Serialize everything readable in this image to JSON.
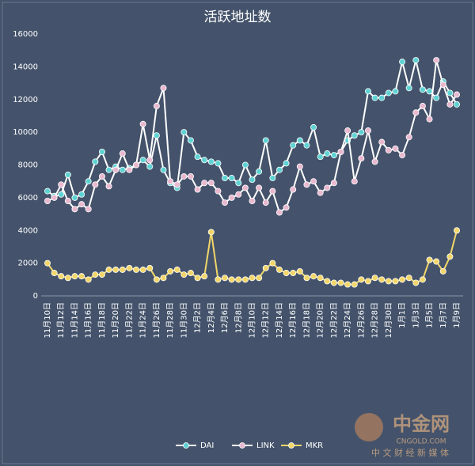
{
  "chart_data": {
    "type": "line",
    "title": "活跃地址数",
    "categories": [
      "11月10日",
      null,
      "11月12日",
      null,
      "11月14日",
      null,
      "11月16日",
      null,
      "11月18日",
      null,
      "11月20日",
      null,
      "11月22日",
      null,
      "11月24日",
      null,
      "11月26日",
      null,
      "11月28日",
      null,
      "11月30日",
      null,
      "12月2日",
      null,
      "12月4日",
      null,
      "12月6日",
      null,
      "12月8日",
      null,
      "12月10日",
      null,
      "12月12日",
      null,
      "12月14日",
      null,
      "12月16日",
      null,
      "12月18日",
      null,
      "12月20日",
      null,
      "12月22日",
      null,
      "12月24日",
      null,
      "12月26日",
      null,
      "12月28日",
      null,
      "12月30日",
      null,
      "1月1日",
      null,
      "1月3日",
      null,
      "1月5日",
      null,
      "1月7日",
      null,
      "1月9日"
    ],
    "series": [
      {
        "name": "DAI",
        "color": "#5fd3d3",
        "line_color": "#ffffff",
        "values": [
          6400,
          6100,
          6200,
          7400,
          6000,
          6200,
          7000,
          8200,
          8800,
          7700,
          7900,
          7700,
          7800,
          8000,
          8300,
          7900,
          9800,
          7700,
          6900,
          6600,
          10000,
          9500,
          8500,
          8300,
          8200,
          8100,
          7200,
          7200,
          6900,
          8000,
          7100,
          7600,
          9500,
          7200,
          7700,
          8100,
          9200,
          9500,
          9200,
          10300,
          8500,
          8700,
          8600,
          8800,
          9500,
          9800,
          10000,
          12500,
          12100,
          12100,
          12400,
          12500,
          14300,
          12700,
          14400,
          12600,
          12500,
          12100,
          13100,
          12400,
          11700
        ]
      },
      {
        "name": "LINK",
        "color": "#e9b9d0",
        "line_color": "#ffffff",
        "values": [
          5800,
          6000,
          6800,
          5800,
          5300,
          5600,
          5300,
          6800,
          7300,
          6700,
          7700,
          8700,
          7700,
          8000,
          10500,
          8300,
          11600,
          12700,
          7000,
          6800,
          7300,
          7300,
          6500,
          6900,
          6900,
          6400,
          5700,
          6000,
          6200,
          6600,
          5800,
          6600,
          5700,
          6400,
          5100,
          5400,
          6500,
          7900,
          6800,
          7000,
          6300,
          6600,
          6900,
          8800,
          10100,
          7000,
          8400,
          10100,
          8200,
          9400,
          8900,
          9000,
          8600,
          9700,
          11200,
          11600,
          10800,
          14400,
          12900,
          11700,
          12300
        ]
      },
      {
        "name": "MKR",
        "color": "#f2d66a",
        "line_color": "#f2d66a",
        "values": [
          2000,
          1400,
          1200,
          1100,
          1200,
          1200,
          1000,
          1300,
          1300,
          1600,
          1600,
          1600,
          1700,
          1600,
          1600,
          1700,
          1000,
          1100,
          1500,
          1600,
          1300,
          1400,
          1100,
          1200,
          3900,
          1000,
          1100,
          1000,
          1000,
          1000,
          1100,
          1100,
          1700,
          2000,
          1600,
          1400,
          1400,
          1500,
          1100,
          1200,
          1100,
          900,
          800,
          800,
          700,
          700,
          1000,
          900,
          1100,
          1000,
          900,
          900,
          1000,
          1100,
          800,
          1000,
          2200,
          2100,
          1500,
          2400,
          4000
        ]
      }
    ],
    "ylim": [
      0,
      16000
    ],
    "yticks": [
      0,
      2000,
      4000,
      6000,
      8000,
      10000,
      12000,
      14000,
      16000
    ],
    "grid": false,
    "legend": "bottom"
  },
  "watermark": {
    "brand": "中金网",
    "site": "CNGOLD.COM",
    "slogan": "中 文 财 经 新 媒 体"
  }
}
